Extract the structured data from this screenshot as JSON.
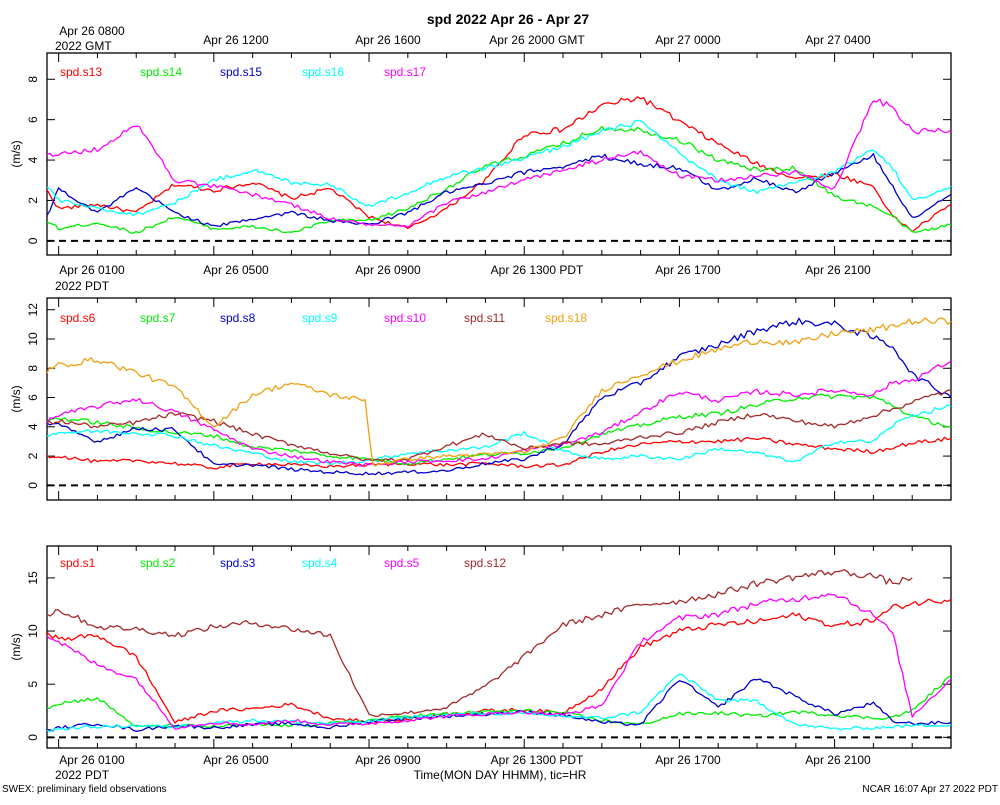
{
  "figure": {
    "title": "spd 2022 Apr 26 - Apr 27",
    "xlabel": "Time(MON DAY HHMM), tic=HR",
    "footer_left": "SWEX: preliminary field observations",
    "footer_right": "NCAR 16:07 Apr 27 2022 PDT"
  },
  "axes": {
    "gmt_ticks": [
      "Apr 26 0800",
      "Apr 26 1200",
      "Apr 26 1600",
      "Apr 26 2000 GMT",
      "Apr 27 0000",
      "Apr 27 0400"
    ],
    "gmt_year": "2022 GMT",
    "pdt_ticks": [
      "Apr 26 0100",
      "Apr 26 0500",
      "Apr 26 0900",
      "Apr 26 1300 PDT",
      "Apr 26 1700",
      "Apr 26 2100"
    ],
    "pdt_year": "2022 PDT",
    "time_range_hours": [
      0.7,
      24.0
    ],
    "major_tick_hours": [
      1,
      5,
      9,
      13,
      17,
      21
    ]
  },
  "colors": {
    "red": "#ff0000",
    "green": "#00ee00",
    "blue": "#0000cc",
    "cyan": "#00ffff",
    "magenta": "#ff00ff",
    "brown": "#a52a2a",
    "orange": "#f0a010"
  },
  "chart_data": [
    {
      "type": "line",
      "panel": "top",
      "ylabel": "(m/s)",
      "ylim": [
        -0.7,
        9.3
      ],
      "yticks": [
        0,
        2,
        4,
        6,
        8
      ],
      "x_unit": "hours PDT, Apr 26",
      "series": [
        {
          "name": "spd.s13",
          "color": "red",
          "x": [
            0.7,
            1,
            2,
            3,
            4,
            5,
            6,
            7,
            8,
            9,
            10,
            11,
            12,
            13,
            14,
            15,
            16,
            17,
            18,
            19,
            20,
            21,
            22,
            22.5,
            23,
            24
          ],
          "y": [
            2.5,
            1.6,
            1.8,
            1.4,
            2.8,
            2.5,
            2.9,
            2.1,
            2.6,
            1.2,
            0.6,
            1.6,
            3.0,
            5.3,
            5.5,
            6.7,
            7.1,
            5.9,
            4.8,
            3.8,
            3.1,
            3.3,
            2.7,
            1.2,
            0.5,
            1.8
          ]
        },
        {
          "name": "spd.s14",
          "color": "green",
          "x": [
            0.7,
            1,
            2,
            3,
            4,
            5,
            6,
            7,
            8,
            9,
            10,
            11,
            12,
            13,
            14,
            15,
            16,
            17,
            18,
            19,
            20,
            21,
            22,
            22.5,
            23,
            24
          ],
          "y": [
            1.0,
            0.6,
            0.9,
            0.4,
            1.2,
            0.6,
            0.7,
            0.4,
            1.0,
            1.0,
            1.6,
            2.6,
            3.7,
            4.2,
            4.8,
            5.6,
            5.5,
            5.0,
            4.0,
            3.5,
            3.6,
            2.2,
            1.7,
            1.2,
            0.4,
            0.8
          ]
        },
        {
          "name": "spd.s15",
          "color": "blue",
          "x": [
            0.7,
            1,
            2,
            3,
            4,
            5,
            6,
            7,
            8,
            9,
            10,
            11,
            12,
            13,
            14,
            15,
            16,
            17,
            18,
            19,
            20,
            21,
            22,
            22.5,
            23,
            24
          ],
          "y": [
            1.2,
            2.6,
            1.4,
            2.6,
            1.4,
            0.7,
            1.1,
            1.4,
            1.0,
            0.8,
            1.4,
            2.4,
            2.8,
            3.4,
            3.7,
            4.2,
            3.8,
            3.6,
            2.5,
            3.1,
            2.4,
            3.4,
            4.2,
            2.7,
            1.1,
            2.3
          ]
        },
        {
          "name": "spd.s16",
          "color": "cyan",
          "x": [
            0.7,
            1,
            2,
            3,
            4,
            5,
            6,
            7,
            8,
            9,
            10,
            11,
            12,
            13,
            14,
            15,
            16,
            17,
            18,
            19,
            20,
            21,
            22,
            22.5,
            23,
            24
          ],
          "y": [
            2.7,
            2.0,
            1.6,
            1.3,
            1.9,
            3.0,
            3.5,
            2.9,
            2.8,
            1.7,
            2.4,
            3.2,
            3.6,
            4.1,
            4.7,
            5.4,
            5.9,
            4.3,
            3.0,
            2.4,
            2.9,
            3.4,
            4.6,
            3.6,
            2.0,
            2.7
          ]
        },
        {
          "name": "spd.s17",
          "color": "magenta",
          "x": [
            0.7,
            1,
            2,
            3,
            4,
            5,
            6,
            7,
            8,
            9,
            10,
            11,
            12,
            13,
            14,
            15,
            16,
            17,
            18,
            19,
            20,
            21,
            22,
            22.5,
            23,
            24
          ],
          "y": [
            4.2,
            4.3,
            4.5,
            5.8,
            3.0,
            2.7,
            2.3,
            1.8,
            1.1,
            0.8,
            0.7,
            1.9,
            2.4,
            3.0,
            3.5,
            4.0,
            4.4,
            3.2,
            3.0,
            3.2,
            3.4,
            2.6,
            7.0,
            6.6,
            5.4,
            5.5
          ]
        }
      ]
    },
    {
      "type": "line",
      "panel": "middle",
      "ylabel": "(m/s)",
      "ylim": [
        -1.0,
        12.8
      ],
      "yticks": [
        0,
        2,
        4,
        6,
        8,
        10,
        12
      ],
      "x_unit": "hours PDT, Apr 26",
      "series": [
        {
          "name": "spd.s6",
          "color": "red",
          "x": [
            0.7,
            1,
            2,
            3,
            4,
            5,
            6,
            7,
            8,
            9,
            10,
            11,
            12,
            13,
            14,
            15,
            16,
            17,
            18,
            19,
            20,
            21,
            22,
            22.5,
            23,
            24
          ],
          "y": [
            2.0,
            2.0,
            1.6,
            1.7,
            1.5,
            1.2,
            1.5,
            1.4,
            1.3,
            1.4,
            1.5,
            1.4,
            1.5,
            1.3,
            1.4,
            2.3,
            2.8,
            3.0,
            3.0,
            3.2,
            2.8,
            2.5,
            2.3,
            2.6,
            2.9,
            3.2
          ]
        },
        {
          "name": "spd.s7",
          "color": "green",
          "x": [
            0.7,
            1,
            2,
            3,
            4,
            5,
            6,
            7,
            8,
            9,
            10,
            11,
            12,
            13,
            14,
            15,
            16,
            17,
            18,
            19,
            20,
            21,
            22,
            22.5,
            23,
            24
          ],
          "y": [
            4.4,
            4.6,
            4.3,
            3.9,
            3.6,
            3.4,
            2.6,
            2.4,
            2.0,
            1.8,
            1.5,
            1.8,
            2.1,
            2.2,
            2.6,
            3.5,
            4.1,
            4.7,
            4.9,
            5.5,
            6.0,
            6.1,
            6.0,
            5.5,
            4.7,
            4.0
          ]
        },
        {
          "name": "spd.s8",
          "color": "blue",
          "x": [
            0.7,
            1,
            2,
            3,
            4,
            5,
            6,
            7,
            8,
            9,
            10,
            11,
            12,
            13,
            14,
            15,
            16,
            17,
            18,
            19,
            20,
            21,
            22,
            22.5,
            23,
            24
          ],
          "y": [
            4.2,
            4.1,
            3.0,
            3.9,
            3.8,
            1.4,
            1.4,
            1.1,
            0.9,
            0.8,
            0.9,
            1.0,
            1.5,
            1.8,
            2.8,
            6.0,
            7.0,
            8.8,
            9.6,
            10.6,
            11.2,
            11.0,
            10.1,
            9.5,
            7.6,
            6.0
          ]
        },
        {
          "name": "spd.s9",
          "color": "cyan",
          "x": [
            0.7,
            1,
            2,
            3,
            4,
            5,
            6,
            7,
            8,
            9,
            10,
            11,
            12,
            13,
            14,
            15,
            16,
            17,
            18,
            19,
            20,
            21,
            22,
            22.5,
            23,
            24
          ],
          "y": [
            3.5,
            3.6,
            3.7,
            3.6,
            3.4,
            2.7,
            2.2,
            1.6,
            1.5,
            1.7,
            2.2,
            2.4,
            2.6,
            3.6,
            2.3,
            1.8,
            2.0,
            1.8,
            2.5,
            2.2,
            1.6,
            3.0,
            3.0,
            4.1,
            4.8,
            5.4
          ]
        },
        {
          "name": "spd.s10",
          "color": "magenta",
          "x": [
            0.7,
            1,
            2,
            3,
            4,
            5,
            6,
            7,
            8,
            9,
            10,
            11,
            12,
            13,
            14,
            15,
            16,
            17,
            18,
            19,
            20,
            21,
            22,
            22.5,
            23,
            24
          ],
          "y": [
            4.4,
            4.8,
            5.4,
            5.9,
            5.0,
            3.8,
            2.5,
            2.0,
            1.6,
            1.4,
            1.6,
            1.7,
            1.8,
            2.4,
            2.8,
            3.6,
            5.0,
            6.4,
            5.8,
            6.4,
            6.2,
            6.5,
            6.2,
            7.0,
            7.2,
            8.5
          ]
        },
        {
          "name": "spd.s11",
          "color": "brown",
          "x": [
            0.7,
            1,
            2,
            3,
            4,
            5,
            6,
            7,
            8,
            9,
            10,
            11,
            12,
            13,
            14,
            15,
            16,
            17,
            18,
            19,
            20,
            21,
            22,
            22.5,
            23,
            24
          ],
          "y": [
            4.2,
            4.4,
            4.0,
            4.3,
            4.9,
            4.4,
            3.5,
            2.8,
            2.2,
            1.7,
            1.8,
            2.7,
            3.5,
            2.5,
            2.9,
            2.8,
            3.3,
            3.6,
            4.3,
            4.9,
            4.4,
            4.0,
            4.8,
            5.2,
            5.7,
            6.5
          ]
        },
        {
          "name": "spd.s18",
          "color": "orange",
          "x": [
            0.7,
            1,
            2,
            3,
            4,
            5,
            6,
            7,
            8,
            8.9,
            9.1,
            10,
            11,
            12,
            13,
            14,
            15,
            16,
            17,
            18,
            19,
            20,
            21,
            22,
            22.5,
            23,
            24
          ],
          "y": [
            7.8,
            8.2,
            8.6,
            7.7,
            6.7,
            4.0,
            6.2,
            7.0,
            6.2,
            5.8,
            1.4,
            1.8,
            2.0,
            2.1,
            2.3,
            3.2,
            6.5,
            7.6,
            8.5,
            9.3,
            9.9,
            9.7,
            10.4,
            10.6,
            10.9,
            11.2,
            11.2
          ]
        }
      ]
    },
    {
      "type": "line",
      "panel": "bottom",
      "ylabel": "(m/s)",
      "ylim": [
        -1.0,
        18.0
      ],
      "yticks": [
        0,
        5,
        10,
        15
      ],
      "x_unit": "hours PDT, Apr 26",
      "series": [
        {
          "name": "spd.s1",
          "color": "red",
          "x": [
            0.7,
            1,
            2,
            3,
            4,
            5,
            6,
            7,
            8,
            9,
            10,
            11,
            12,
            13,
            14,
            15,
            16,
            17,
            18,
            19,
            20,
            21,
            22,
            22.5,
            23,
            24
          ],
          "y": [
            10.0,
            9.2,
            9.6,
            7.6,
            1.4,
            2.5,
            2.7,
            3.1,
            1.8,
            1.5,
            1.7,
            2.2,
            2.5,
            2.6,
            2.3,
            4.6,
            8.5,
            10.0,
            10.6,
            10.9,
            11.5,
            10.5,
            11.0,
            12.2,
            12.6,
            13.0
          ]
        },
        {
          "name": "spd.s2",
          "color": "green",
          "x": [
            0.7,
            1,
            2,
            3,
            4,
            5,
            6,
            7,
            8,
            9,
            10,
            11,
            12,
            13,
            14,
            15,
            16,
            17,
            18,
            19,
            20,
            21,
            22,
            22.5,
            23,
            24
          ],
          "y": [
            2.8,
            3.2,
            3.7,
            1.0,
            1.1,
            1.0,
            1.2,
            1.1,
            1.3,
            1.6,
            2.0,
            2.2,
            2.4,
            2.5,
            2.3,
            1.6,
            1.2,
            2.2,
            2.3,
            2.0,
            2.4,
            2.1,
            1.8,
            1.9,
            2.5,
            5.8
          ]
        },
        {
          "name": "spd.s3",
          "color": "blue",
          "x": [
            0.7,
            1,
            2,
            3,
            4,
            5,
            6,
            7,
            8,
            9,
            10,
            11,
            12,
            13,
            14,
            15,
            16,
            17,
            18,
            19,
            20,
            21,
            22,
            22.5,
            23,
            24
          ],
          "y": [
            0.6,
            0.9,
            1.3,
            0.7,
            1.1,
            0.9,
            1.2,
            1.3,
            0.9,
            1.5,
            1.8,
            2.0,
            2.2,
            2.4,
            2.1,
            1.4,
            1.2,
            5.5,
            2.8,
            5.6,
            3.8,
            2.2,
            3.2,
            1.5,
            1.3,
            1.4
          ]
        },
        {
          "name": "spd.s4",
          "color": "cyan",
          "x": [
            0.7,
            1,
            2,
            3,
            4,
            5,
            6,
            7,
            8,
            9,
            10,
            11,
            12,
            13,
            14,
            15,
            16,
            17,
            18,
            19,
            20,
            21,
            22,
            22.5,
            23,
            24
          ],
          "y": [
            0.6,
            0.8,
            1.0,
            1.1,
            1.0,
            1.4,
            1.6,
            1.5,
            1.3,
            1.5,
            1.9,
            2.1,
            2.3,
            2.2,
            2.0,
            1.8,
            2.4,
            6.0,
            3.5,
            3.4,
            1.2,
            0.8,
            0.9,
            1.0,
            1.1,
            1.2
          ]
        },
        {
          "name": "spd.s5",
          "color": "magenta",
          "x": [
            0.7,
            1,
            2,
            3,
            4,
            5,
            6,
            7,
            8,
            9,
            10,
            11,
            12,
            13,
            14,
            15,
            16,
            17,
            18,
            19,
            20,
            21,
            22,
            22.5,
            23,
            24
          ],
          "y": [
            9.5,
            9.0,
            6.8,
            5.5,
            0.9,
            1.4,
            1.2,
            1.6,
            1.2,
            1.3,
            1.6,
            2.0,
            2.2,
            2.4,
            2.1,
            3.0,
            9.0,
            11.2,
            11.6,
            12.6,
            13.0,
            13.6,
            11.5,
            9.8,
            2.0,
            5.5
          ]
        },
        {
          "name": "spd.s12",
          "color": "brown",
          "x": [
            0.7,
            1,
            2,
            3,
            4,
            5,
            6,
            7,
            8,
            9,
            10,
            11,
            12,
            13,
            14,
            15,
            16,
            17,
            18,
            19,
            20,
            21,
            22,
            22.5,
            23
          ],
          "y": [
            11.5,
            12.0,
            10.4,
            10.2,
            9.6,
            10.4,
            10.8,
            10.2,
            9.6,
            2.1,
            2.3,
            2.8,
            4.8,
            7.6,
            10.6,
            11.5,
            12.5,
            12.8,
            13.5,
            14.5,
            15.1,
            15.6,
            15.2,
            14.5,
            15.0
          ]
        }
      ]
    }
  ]
}
